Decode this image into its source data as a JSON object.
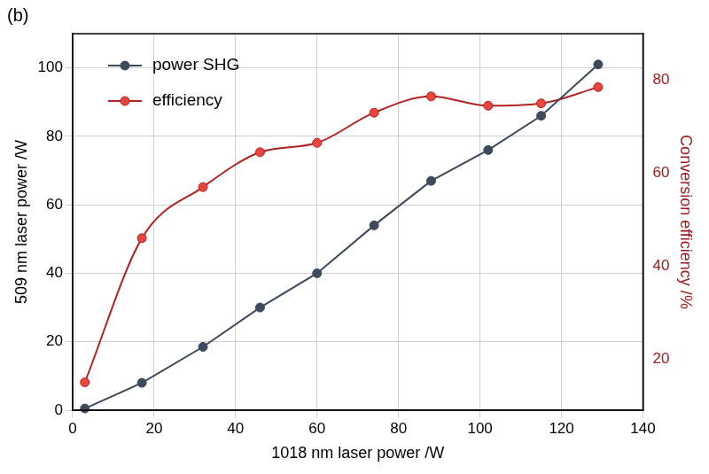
{
  "chart_data": {
    "type": "line",
    "panel_label": "(b)",
    "x_label": "1018 nm laser power /W",
    "y_label": "509 nm laser power /W",
    "y2_label": "Conversion efficiency /%",
    "x": [
      3,
      17,
      32,
      46,
      60,
      74,
      88,
      102,
      115,
      129
    ],
    "series": [
      {
        "name": "power SHG",
        "color": "#3d4a5c",
        "marker": "circle",
        "line_style": "solid",
        "values": [
          0.5,
          8,
          18.5,
          30,
          40,
          54,
          67,
          76,
          86,
          101
        ]
      },
      {
        "name": "efficiency",
        "color": "#b22222",
        "marker": "circle",
        "line_style": "smooth",
        "axis": "y2",
        "values": [
          15,
          46,
          57,
          64.5,
          66.5,
          73,
          76.5,
          74.5,
          75,
          78.5
        ]
      }
    ],
    "xlim": [
      0,
      140
    ],
    "xticks": [
      0,
      20,
      40,
      60,
      80,
      100,
      120,
      140
    ],
    "ylim": [
      0,
      110
    ],
    "yticks": [
      0,
      20,
      40,
      60,
      80,
      100
    ],
    "y2lim": [
      9,
      90
    ],
    "y2ticks": [
      20,
      40,
      60,
      80
    ],
    "grid": true,
    "legend": "upper left"
  }
}
